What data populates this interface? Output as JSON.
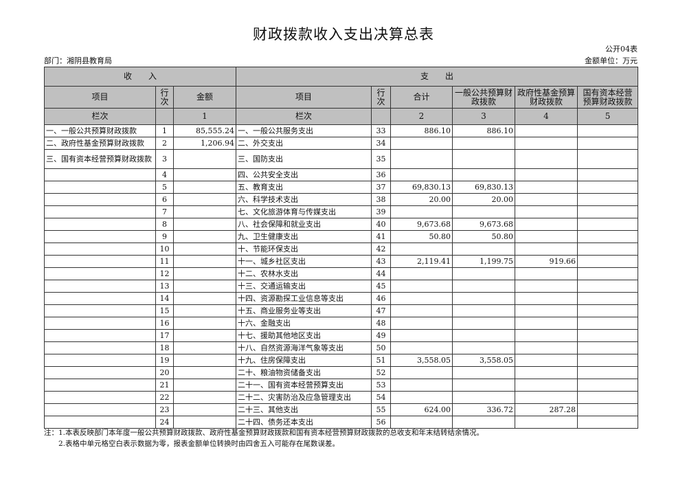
{
  "title": "财政拨款收入支出决算总表",
  "form_code": "公开04表",
  "department": "部门：湘阴县教育局",
  "unit": "金额单位：万元",
  "headers": {
    "income": "收　　入",
    "expense": "支　　出",
    "item": "项目",
    "row_no": "行次",
    "amount": "金额",
    "total": "合计",
    "general": "一般公共预算财政拨款",
    "fund": "政府性基金预算财政拨款",
    "state_capital": "国有资本经营预算财政拨款",
    "column_label": "栏次",
    "col1": "1",
    "col2": "2",
    "col3": "3",
    "col4": "4",
    "col5": "5"
  },
  "rows": [
    {
      "in_item": "一、一般公共预算财政拨款",
      "in_no": "1",
      "in_amt": "85,555.24",
      "ex_item": "一、一般公共服务支出",
      "ex_no": "33",
      "total": "886.10",
      "general": "886.10",
      "fund": "",
      "sc": ""
    },
    {
      "in_item": "二、政府性基金预算财政拨款",
      "in_no": "2",
      "in_amt": "1,206.94",
      "ex_item": "二、外交支出",
      "ex_no": "34",
      "total": "",
      "general": "",
      "fund": "",
      "sc": ""
    },
    {
      "in_item": "三、国有资本经营预算财政拨款",
      "in_no": "3",
      "in_amt": "",
      "ex_item": "三、国防支出",
      "ex_no": "35",
      "total": "",
      "general": "",
      "fund": "",
      "sc": ""
    },
    {
      "in_item": "",
      "in_no": "4",
      "in_amt": "",
      "ex_item": "四、公共安全支出",
      "ex_no": "36",
      "total": "",
      "general": "",
      "fund": "",
      "sc": ""
    },
    {
      "in_item": "",
      "in_no": "5",
      "in_amt": "",
      "ex_item": "五、教育支出",
      "ex_no": "37",
      "total": "69,830.13",
      "general": "69,830.13",
      "fund": "",
      "sc": ""
    },
    {
      "in_item": "",
      "in_no": "6",
      "in_amt": "",
      "ex_item": "六、科学技术支出",
      "ex_no": "38",
      "total": "20.00",
      "general": "20.00",
      "fund": "",
      "sc": ""
    },
    {
      "in_item": "",
      "in_no": "7",
      "in_amt": "",
      "ex_item": "七、文化旅游体育与传媒支出",
      "ex_no": "39",
      "total": "",
      "general": "",
      "fund": "",
      "sc": ""
    },
    {
      "in_item": "",
      "in_no": "8",
      "in_amt": "",
      "ex_item": "八、社会保障和就业支出",
      "ex_no": "40",
      "total": "9,673.68",
      "general": "9,673.68",
      "fund": "",
      "sc": ""
    },
    {
      "in_item": "",
      "in_no": "9",
      "in_amt": "",
      "ex_item": "九、卫生健康支出",
      "ex_no": "41",
      "total": "50.80",
      "general": "50.80",
      "fund": "",
      "sc": ""
    },
    {
      "in_item": "",
      "in_no": "10",
      "in_amt": "",
      "ex_item": "十、节能环保支出",
      "ex_no": "42",
      "total": "",
      "general": "",
      "fund": "",
      "sc": ""
    },
    {
      "in_item": "",
      "in_no": "11",
      "in_amt": "",
      "ex_item": "十一、城乡社区支出",
      "ex_no": "43",
      "total": "2,119.41",
      "general": "1,199.75",
      "fund": "919.66",
      "sc": ""
    },
    {
      "in_item": "",
      "in_no": "12",
      "in_amt": "",
      "ex_item": "十二、农林水支出",
      "ex_no": "44",
      "total": "",
      "general": "",
      "fund": "",
      "sc": ""
    },
    {
      "in_item": "",
      "in_no": "13",
      "in_amt": "",
      "ex_item": "十三、交通运输支出",
      "ex_no": "45",
      "total": "",
      "general": "",
      "fund": "",
      "sc": ""
    },
    {
      "in_item": "",
      "in_no": "14",
      "in_amt": "",
      "ex_item": "十四、资源勘探工业信息等支出",
      "ex_no": "46",
      "total": "",
      "general": "",
      "fund": "",
      "sc": ""
    },
    {
      "in_item": "",
      "in_no": "15",
      "in_amt": "",
      "ex_item": "十五、商业服务业等支出",
      "ex_no": "47",
      "total": "",
      "general": "",
      "fund": "",
      "sc": ""
    },
    {
      "in_item": "",
      "in_no": "16",
      "in_amt": "",
      "ex_item": "十六、金融支出",
      "ex_no": "48",
      "total": "",
      "general": "",
      "fund": "",
      "sc": ""
    },
    {
      "in_item": "",
      "in_no": "17",
      "in_amt": "",
      "ex_item": "十七、援助其他地区支出",
      "ex_no": "49",
      "total": "",
      "general": "",
      "fund": "",
      "sc": ""
    },
    {
      "in_item": "",
      "in_no": "18",
      "in_amt": "",
      "ex_item": "十八、自然资源海洋气象等支出",
      "ex_no": "50",
      "total": "",
      "general": "",
      "fund": "",
      "sc": ""
    },
    {
      "in_item": "",
      "in_no": "19",
      "in_amt": "",
      "ex_item": "十九、住房保障支出",
      "ex_no": "51",
      "total": "3,558.05",
      "general": "3,558.05",
      "fund": "",
      "sc": ""
    },
    {
      "in_item": "",
      "in_no": "20",
      "in_amt": "",
      "ex_item": "二十、粮油物资储备支出",
      "ex_no": "52",
      "total": "",
      "general": "",
      "fund": "",
      "sc": ""
    },
    {
      "in_item": "",
      "in_no": "21",
      "in_amt": "",
      "ex_item": "二十一、国有资本经营预算支出",
      "ex_no": "53",
      "total": "",
      "general": "",
      "fund": "",
      "sc": ""
    },
    {
      "in_item": "",
      "in_no": "22",
      "in_amt": "",
      "ex_item": "二十二、灾害防治及应急管理支出",
      "ex_no": "54",
      "total": "",
      "general": "",
      "fund": "",
      "sc": ""
    },
    {
      "in_item": "",
      "in_no": "23",
      "in_amt": "",
      "ex_item": "二十三、其他支出",
      "ex_no": "55",
      "total": "624.00",
      "general": "336.72",
      "fund": "287.28",
      "sc": ""
    },
    {
      "in_item": "",
      "in_no": "24",
      "in_amt": "",
      "ex_item": "二十四、债务还本支出",
      "ex_no": "56",
      "total": "",
      "general": "",
      "fund": "",
      "sc": ""
    }
  ],
  "notes": [
    "注：1.本表反映部门本年度一般公共预算财政拨款、政府性基金预算财政拨款和国有资本经营预算财政拨款的总收支和年末结转结余情况。",
    "　　2.表格中单元格空白表示数据为零，报表金额单位转换时由四舍五入可能存在尾数误差。"
  ]
}
